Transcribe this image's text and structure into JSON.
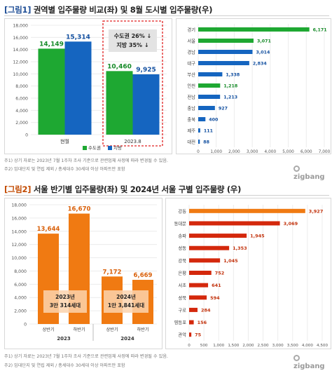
{
  "figure1": {
    "tag": "[그림1]",
    "title": "권역별 입주물량 비교(좌) 및 8월 도시별 입주물량(우)",
    "notes": [
      "주1) 상기 자료는 2023년 7월 1주차 조사 기준으로 관련업체 사정에 따라 변경될 수 있음.",
      "주2) 임대단지 및 연립 제외 / 총세대수 30세대 이상 아파트만 포함"
    ],
    "brand": "zigbang"
  },
  "figure2": {
    "tag": "[그림2]",
    "title": "서울 반기별 입주물량(좌) 및 2024년 서울 구별 입주물량 (우)",
    "notes": [
      "주1) 상기 자료는 2023년 7월 1주차 조사 기준으로 관련업체 사정에 따라 변경될 수 있음.",
      "주2) 임대단지 및 연립 제외 / 총세대수 30세대 이상 아파트만 포함"
    ],
    "brand": "zigbang"
  },
  "chart_data": [
    {
      "type": "bar",
      "categories": [
        "현월",
        "2023.8"
      ],
      "series": [
        {
          "name": "수도권",
          "values": [
            14149,
            10460
          ],
          "labels": [
            "14,149",
            "10,460"
          ],
          "color": "#1ea832"
        },
        {
          "name": "지방",
          "values": [
            15314,
            9925
          ],
          "labels": [
            "15,314",
            "9,925"
          ],
          "color": "#1565c0"
        }
      ],
      "ylim": [
        0,
        18000
      ],
      "yticks": [
        "0",
        "2,000",
        "4,000",
        "6,000",
        "8,000",
        "10,000",
        "12,000",
        "14,000",
        "16,000",
        "18,000"
      ],
      "legend": "bottom",
      "annotation_box": [
        "수도권 26% ↓",
        "지방 35% ↓"
      ]
    },
    {
      "type": "bar",
      "orientation": "horizontal",
      "categories": [
        "경기",
        "서울",
        "경남",
        "대구",
        "부산",
        "인천",
        "전남",
        "충남",
        "충북",
        "제주",
        "대전"
      ],
      "values": [
        6171,
        3071,
        3014,
        2834,
        1338,
        1218,
        1213,
        927,
        400,
        111,
        88
      ],
      "labels": [
        "6,171",
        "3,071",
        "3,014",
        "2,834",
        "1,338",
        "1,218",
        "1,213",
        "927",
        "400",
        "111",
        "88"
      ],
      "colors": [
        "#1ea832",
        "#1ea832",
        "#1565c0",
        "#1565c0",
        "#1565c0",
        "#1ea832",
        "#1565c0",
        "#1565c0",
        "#1565c0",
        "#1565c0",
        "#1565c0"
      ],
      "xlim": [
        0,
        7000
      ],
      "xticks": [
        "0",
        "1,000",
        "2,000",
        "3,000",
        "4,000",
        "5,000",
        "6,000",
        "7,000"
      ]
    },
    {
      "type": "bar",
      "groups": [
        "2023",
        "2024"
      ],
      "categories": [
        "상반기",
        "하반기",
        "상반기",
        "하반기"
      ],
      "values": [
        13644,
        16670,
        7172,
        6669
      ],
      "labels": [
        "13,644",
        "16,670",
        "7,172",
        "6,669"
      ],
      "colors": [
        "#f07a12",
        "#f07a12",
        "#f07a12",
        "#f07a12"
      ],
      "ylim": [
        0,
        18000
      ],
      "yticks": [
        "0",
        "2,000",
        "4,000",
        "6,000",
        "8,000",
        "10,000",
        "12,000",
        "14,000",
        "16,000",
        "18,000"
      ],
      "annotations": [
        [
          "2023년",
          "3만 314세대"
        ],
        [
          "2024년",
          "1만 3,841세대"
        ]
      ]
    },
    {
      "type": "bar",
      "orientation": "horizontal",
      "categories": [
        "강동",
        "동대문",
        "송파",
        "성동",
        "강북",
        "은평",
        "서초",
        "성북",
        "구로",
        "영등포",
        "관악"
      ],
      "values": [
        3927,
        3069,
        1945,
        1353,
        1045,
        752,
        641,
        594,
        284,
        156,
        75
      ],
      "labels": [
        "3,927",
        "3,069",
        "1,945",
        "1,353",
        "1,045",
        "752",
        "641",
        "594",
        "284",
        "156",
        "75"
      ],
      "colors": [
        "#f07a12",
        "#d4280c",
        "#d4280c",
        "#d4280c",
        "#d4280c",
        "#d4280c",
        "#d4280c",
        "#d4280c",
        "#d4280c",
        "#d4280c",
        "#d4280c"
      ],
      "xlim": [
        0,
        4500
      ],
      "xticks": [
        "0",
        "500",
        "1,000",
        "1,500",
        "2,000",
        "2,500",
        "3,000",
        "3,500",
        "4,000",
        "4,500"
      ]
    }
  ]
}
